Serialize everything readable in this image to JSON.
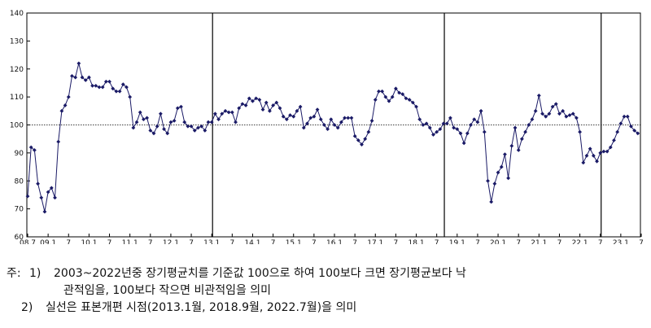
{
  "chart_data": {
    "type": "line",
    "title": "",
    "xlabel": "",
    "ylabel": "",
    "ylim": [
      60,
      140
    ],
    "yticks": [
      60,
      70,
      80,
      90,
      100,
      110,
      120,
      130,
      140
    ],
    "reference_line": 100,
    "structural_breaks": [
      "13.1",
      "18.9",
      "22.7"
    ],
    "grid": false,
    "marker": "diamond",
    "line_color": "#1a1a66",
    "x_start": "2008-07",
    "x_tick_labels": [
      "08.7",
      "09.1",
      "7",
      "10.1",
      "7",
      "11.1",
      "7",
      "12.1",
      "7",
      "13.1",
      "7",
      "14.1",
      "7",
      "15.1",
      "7",
      "16.1",
      "7",
      "17.1",
      "7",
      "18.1",
      "7",
      "19.1",
      "7",
      "20.1",
      "7",
      "21.1",
      "7",
      "22.1",
      "7",
      "23.1",
      "7"
    ],
    "series": [
      {
        "values": [
          74.5,
          92,
          91,
          79,
          74,
          69,
          76,
          77.5,
          74,
          94,
          105,
          107,
          110,
          117.5,
          117,
          122,
          117,
          116,
          117,
          114,
          114,
          113.5,
          113.5,
          115.5,
          115.5,
          113,
          112,
          112,
          114.5,
          113.5,
          110,
          99,
          101,
          104.5,
          102,
          102.5,
          98,
          97,
          99.5,
          104,
          98.5,
          97,
          101,
          101.5,
          106,
          106.5,
          101,
          99.5,
          99.5,
          98,
          99,
          99.5,
          98,
          101,
          101,
          104,
          102,
          104,
          105,
          104.5,
          104.5,
          101,
          106,
          107.5,
          107,
          109.5,
          108.5,
          109.5,
          109,
          105.5,
          108,
          105,
          107,
          108,
          106,
          103,
          102,
          103.5,
          103,
          105,
          106.5,
          99,
          100.5,
          102.5,
          103,
          105.5,
          102,
          100,
          98.5,
          102,
          100,
          99,
          101,
          102.5,
          102.5,
          102.5,
          96,
          94.5,
          93,
          95,
          97.5,
          101.5,
          109,
          112,
          112,
          110,
          108.5,
          110,
          113,
          111.5,
          111,
          109.5,
          109,
          108,
          106.5,
          102,
          100,
          100.5,
          99,
          96.5,
          97.5,
          98.5,
          100.5,
          100.5,
          102.5,
          99,
          98.5,
          97,
          93.5,
          97,
          100,
          102,
          101,
          105,
          97.5,
          80,
          72.5,
          79,
          83,
          85,
          89.5,
          81,
          92.5,
          99,
          91,
          95,
          97.5,
          100,
          102,
          105,
          110.5,
          104,
          103,
          104,
          106.5,
          107.5,
          104,
          105,
          103,
          103.5,
          104,
          102.5,
          97.5,
          86.5,
          89,
          91.5,
          89,
          87,
          90,
          90.5,
          90.5,
          92,
          94.5,
          97.5,
          100.5,
          103,
          103,
          99.5,
          98,
          97
        ]
      }
    ]
  },
  "notes": {
    "prefix": "주:",
    "item1_num": "1)",
    "item1_line1": "2003~2022년중 장기평균치를 기준값 100으로 하여 100보다 크면 장기평균보다 낙",
    "item1_line2": "관적임을, 100보다 작으면 비관적임을 의미",
    "item2_num": "2)",
    "item2_line1": "실선은 표본개편 시점(2013.1월, 2018.9월, 2022.7월)을 의미"
  }
}
